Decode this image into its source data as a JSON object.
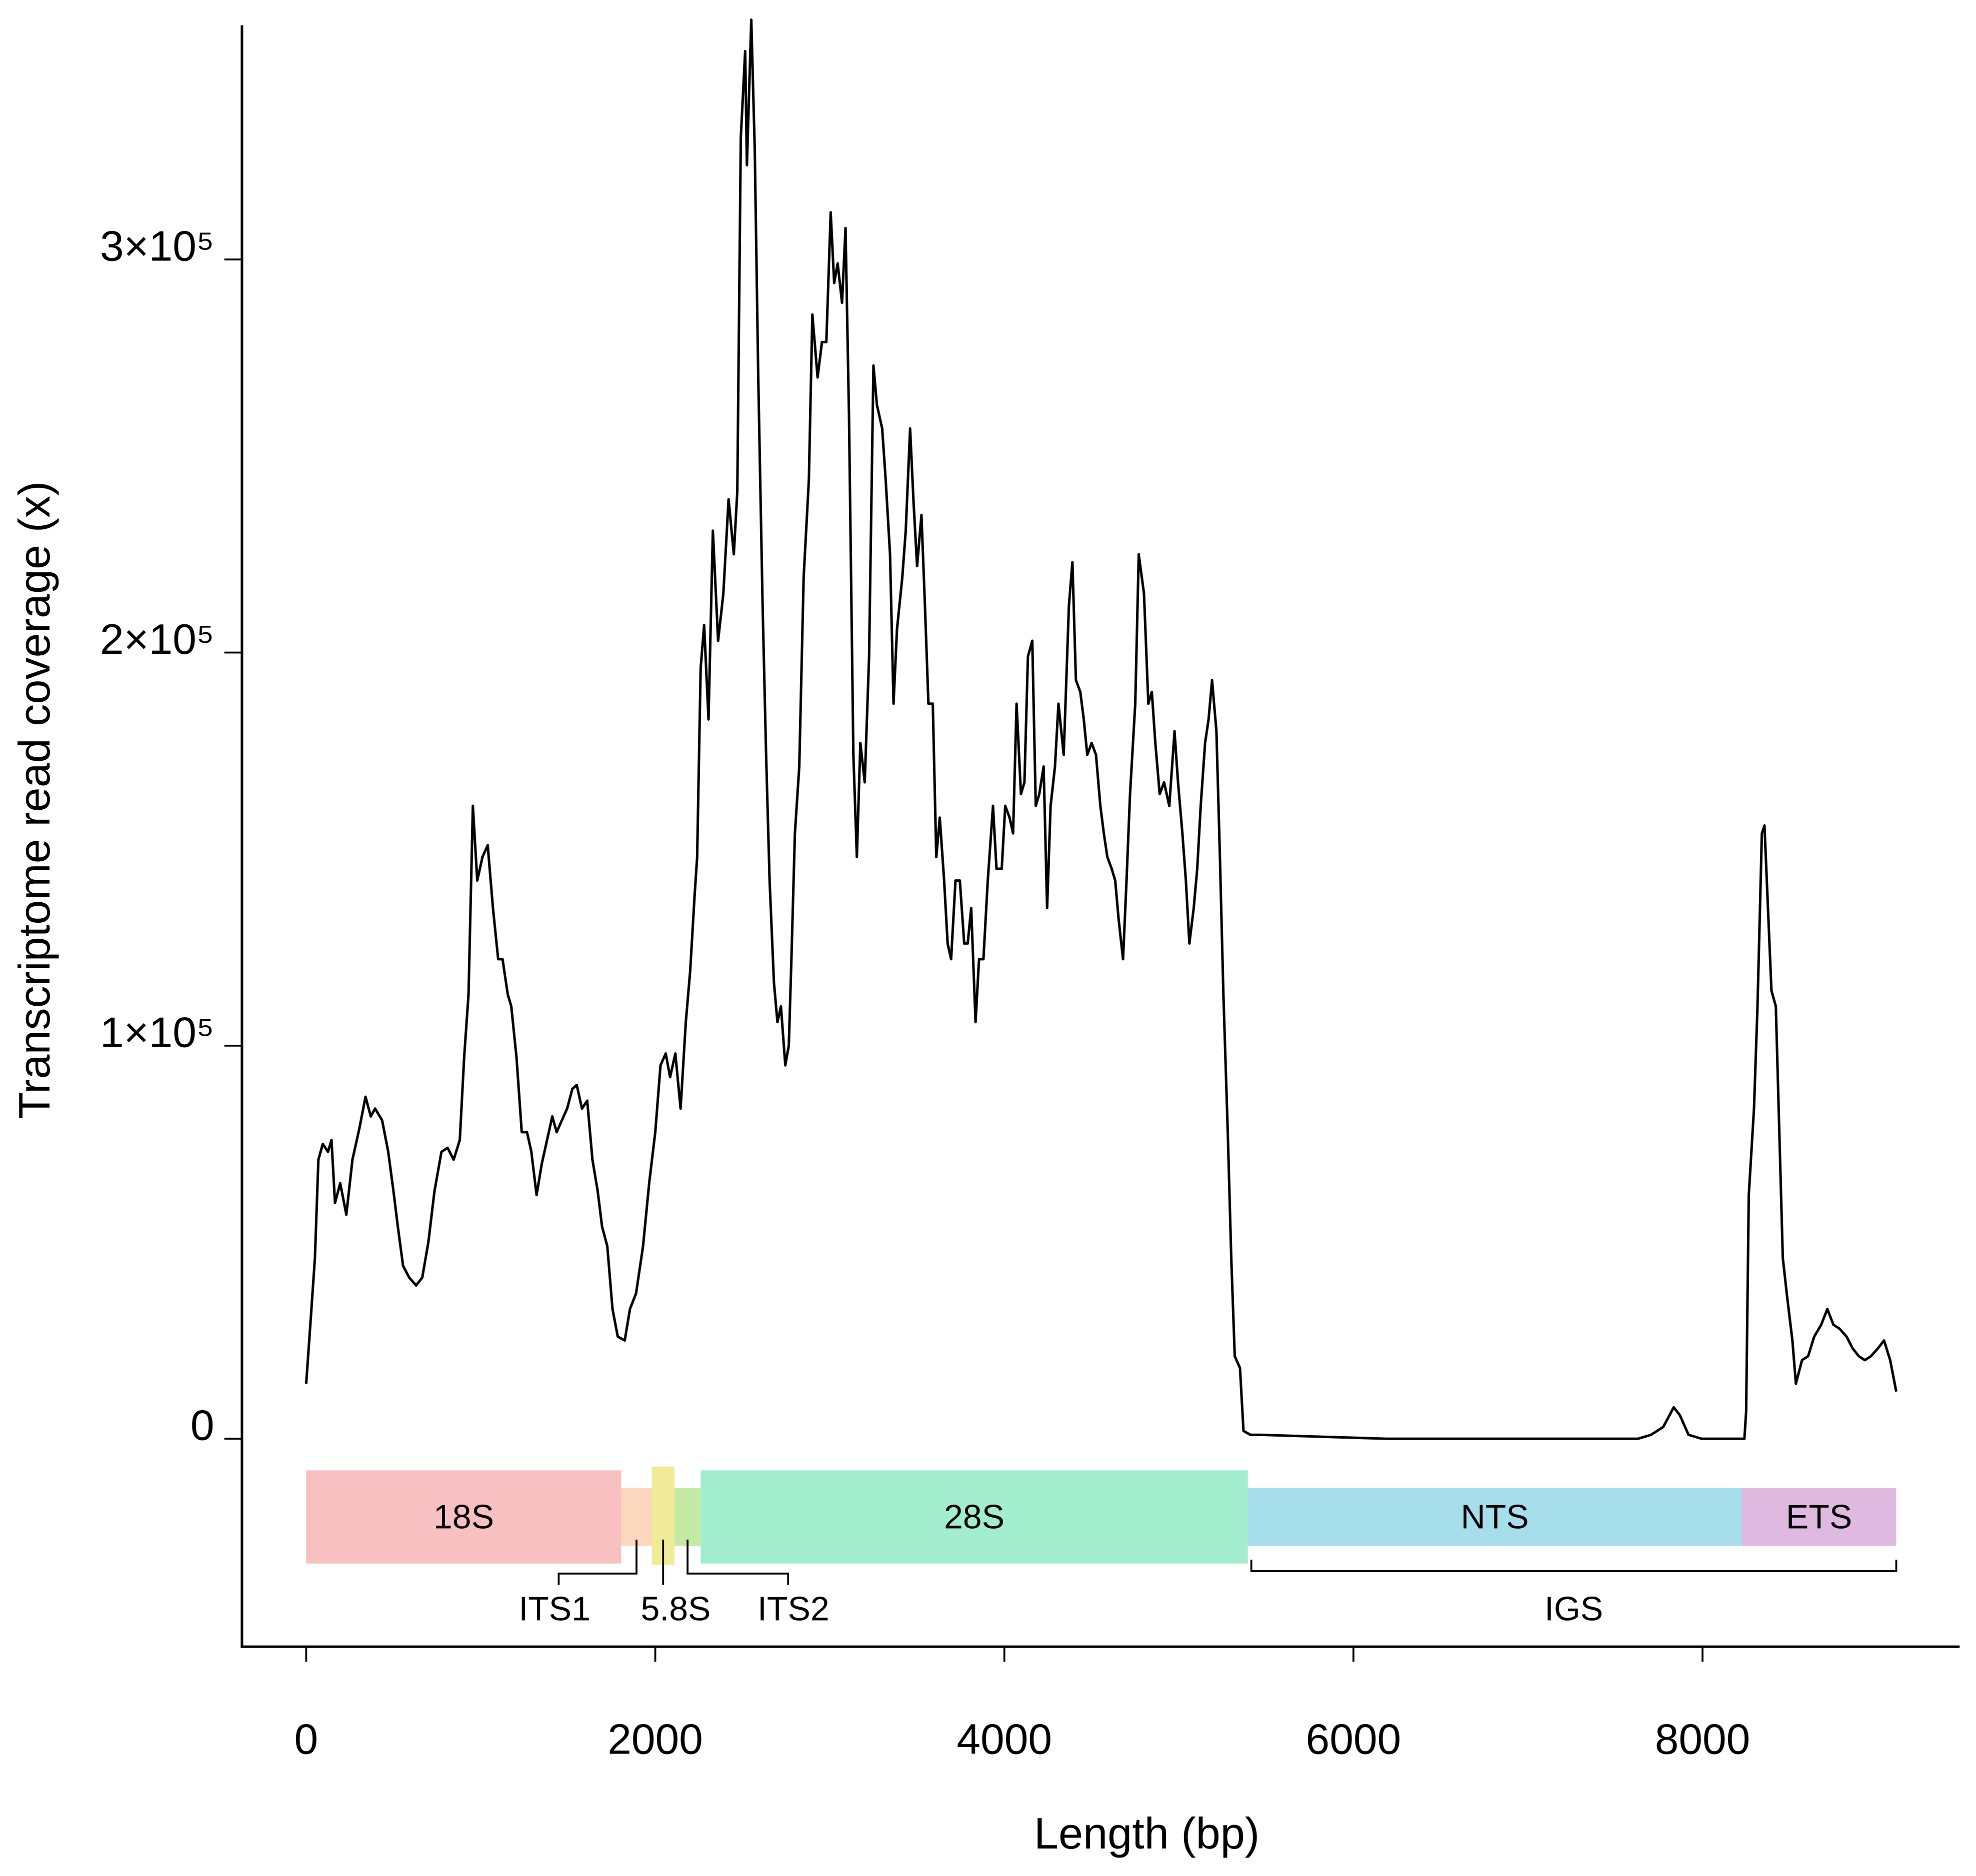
{
  "chart_data": {
    "type": "line",
    "x_label": "Length (bp)",
    "y_label": "Transcriptome read coverage (x)",
    "color": "#000000",
    "xlim": [
      -368,
      9473
    ],
    "ylim": [
      -52900,
      359600
    ],
    "xticks": [
      0,
      2000,
      4000,
      6000,
      8000
    ],
    "yticks": [
      0,
      {
        "value": 100000,
        "label": "1×10⁵"
      },
      {
        "value": 200000,
        "label": "2×10⁵"
      },
      {
        "value": 300000,
        "label": "3×10⁵"
      }
    ],
    "x": [
      0,
      30,
      50,
      70,
      95,
      125,
      145,
      165,
      195,
      230,
      265,
      305,
      340,
      370,
      395,
      435,
      470,
      500,
      525,
      555,
      590,
      630,
      665,
      700,
      735,
      775,
      810,
      845,
      880,
      905,
      930,
      955,
      980,
      1010,
      1040,
      1070,
      1100,
      1125,
      1155,
      1175,
      1205,
      1235,
      1265,
      1290,
      1320,
      1350,
      1380,
      1410,
      1435,
      1465,
      1495,
      1525,
      1550,
      1580,
      1610,
      1640,
      1670,
      1695,
      1725,
      1755,
      1785,
      1825,
      1855,
      1890,
      1930,
      1965,
      2000,
      2030,
      2060,
      2085,
      2115,
      2145,
      2175,
      2200,
      2225,
      2240,
      2260,
      2280,
      2305,
      2330,
      2360,
      2390,
      2420,
      2450,
      2470,
      2490,
      2515,
      2525,
      2550,
      2570,
      2590,
      2615,
      2635,
      2655,
      2680,
      2700,
      2720,
      2745,
      2765,
      2780,
      2800,
      2825,
      2850,
      2880,
      2900,
      2930,
      2955,
      2980,
      3005,
      3025,
      3045,
      3070,
      3090,
      3110,
      3135,
      3155,
      3175,
      3200,
      3225,
      3250,
      3270,
      3300,
      3320,
      3345,
      3365,
      3385,
      3415,
      3435,
      3460,
      3480,
      3500,
      3525,
      3545,
      3565,
      3590,
      3610,
      3630,
      3655,
      3675,
      3695,
      3720,
      3745,
      3770,
      3790,
      3810,
      3835,
      3855,
      3880,
      3905,
      3935,
      3955,
      3985,
      4005,
      4030,
      4050,
      4070,
      4095,
      4115,
      4135,
      4160,
      4180,
      4200,
      4225,
      4245,
      4265,
      4290,
      4310,
      4340,
      4370,
      4390,
      4410,
      4435,
      4455,
      4475,
      4500,
      4525,
      4550,
      4570,
      4590,
      4615,
      4635,
      4655,
      4680,
      4700,
      4720,
      4750,
      4770,
      4800,
      4825,
      4845,
      4865,
      4890,
      4915,
      4945,
      4975,
      4995,
      5020,
      5040,
      5060,
      5085,
      5105,
      5125,
      5150,
      5170,
      5190,
      5215,
      5235,
      5255,
      5280,
      5300,
      5320,
      5350,
      5370,
      5410,
      5465,
      6190,
      6910,
      7630,
      7705,
      7775,
      7835,
      7870,
      7920,
      7995,
      8240,
      8250,
      8265,
      8295,
      8315,
      8340,
      8355,
      8375,
      8395,
      8420,
      8440,
      8460,
      8485,
      8515,
      8535,
      8570,
      8605,
      8640,
      8680,
      8715,
      8750,
      8785,
      8825,
      8860,
      8895,
      8930,
      8965,
      9005,
      9040,
      9075,
      9110
    ],
    "values": [
      14000,
      33000,
      46000,
      71000,
      75000,
      73000,
      76000,
      60000,
      65000,
      57000,
      71000,
      79000,
      87000,
      82000,
      84000,
      81000,
      73000,
      63000,
      54000,
      44000,
      41000,
      39000,
      41000,
      50000,
      63000,
      73000,
      74000,
      71000,
      76000,
      97000,
      113000,
      161000,
      142000,
      148000,
      151000,
      135000,
      122000,
      122000,
      113000,
      110000,
      97000,
      78000,
      78000,
      73000,
      62000,
      70000,
      76000,
      82000,
      78000,
      81000,
      84000,
      89000,
      90000,
      84000,
      86000,
      71000,
      63000,
      54000,
      49000,
      33000,
      26000,
      25000,
      33000,
      37000,
      49000,
      65000,
      78000,
      95000,
      98000,
      92000,
      98000,
      84000,
      106000,
      119000,
      138000,
      148000,
      196000,
      207000,
      183000,
      231000,
      203000,
      215000,
      239000,
      225000,
      241000,
      331000,
      353000,
      324000,
      361000,
      328000,
      270000,
      212000,
      174000,
      142000,
      116000,
      106000,
      110000,
      95000,
      100000,
      122000,
      154000,
      171000,
      219000,
      244000,
      286000,
      270000,
      279000,
      279000,
      312000,
      294000,
      299000,
      289000,
      308000,
      260000,
      174000,
      148000,
      177000,
      167000,
      199000,
      273000,
      263000,
      257000,
      244000,
      225000,
      187000,
      206000,
      219000,
      231000,
      257000,
      238000,
      222000,
      235000,
      212000,
      187000,
      187000,
      148000,
      158000,
      142000,
      126000,
      122000,
      142000,
      142000,
      126000,
      126000,
      135000,
      106000,
      122000,
      122000,
      142000,
      161000,
      145000,
      145000,
      161000,
      158000,
      154000,
      187000,
      164000,
      167000,
      199000,
      203000,
      161000,
      164000,
      171000,
      135000,
      161000,
      171000,
      187000,
      174000,
      212000,
      223000,
      193000,
      190000,
      183000,
      174000,
      177000,
      174000,
      161000,
      154000,
      148000,
      145000,
      142000,
      132000,
      122000,
      142000,
      164000,
      187000,
      225000,
      215000,
      187000,
      190000,
      177000,
      164000,
      167000,
      161000,
      180000,
      167000,
      154000,
      142000,
      126000,
      135000,
      145000,
      161000,
      177000,
      183000,
      193000,
      180000,
      148000,
      113000,
      78000,
      46000,
      21000,
      18000,
      2000,
      1000,
      1000,
      0,
      0,
      0,
      1000,
      3000,
      8000,
      6000,
      1000,
      0,
      0,
      7000,
      62000,
      84000,
      110000,
      154000,
      156000,
      135000,
      114000,
      110000,
      78000,
      46000,
      36000,
      25000,
      14000,
      20000,
      21000,
      26000,
      29000,
      33000,
      29000,
      28000,
      26000,
      23000,
      21000,
      20000,
      21000,
      23000,
      25000,
      20000,
      12000
    ],
    "regions": [
      {
        "name": "18S",
        "start": 0,
        "end": 1805,
        "color": "#f9c0c1"
      },
      {
        "name": "ITS1",
        "start": 1805,
        "end": 1980,
        "color": "#fbd8bd"
      },
      {
        "name": "5.8S",
        "start": 1980,
        "end": 2110,
        "color": "#f1eb98"
      },
      {
        "name": "ITS2",
        "start": 2110,
        "end": 2260,
        "color": "#c4eaa4"
      },
      {
        "name": "28S",
        "start": 2260,
        "end": 5395,
        "color": "#a3edcf"
      },
      {
        "name": "NTS",
        "start": 5395,
        "end": 8225,
        "color": "#a7deeb"
      },
      {
        "name": "ETS",
        "start": 8225,
        "end": 9110,
        "color": "#e0b9e0"
      }
    ],
    "brackets": [
      {
        "name": "IGS",
        "start": 5415,
        "end": 9110
      }
    ]
  }
}
